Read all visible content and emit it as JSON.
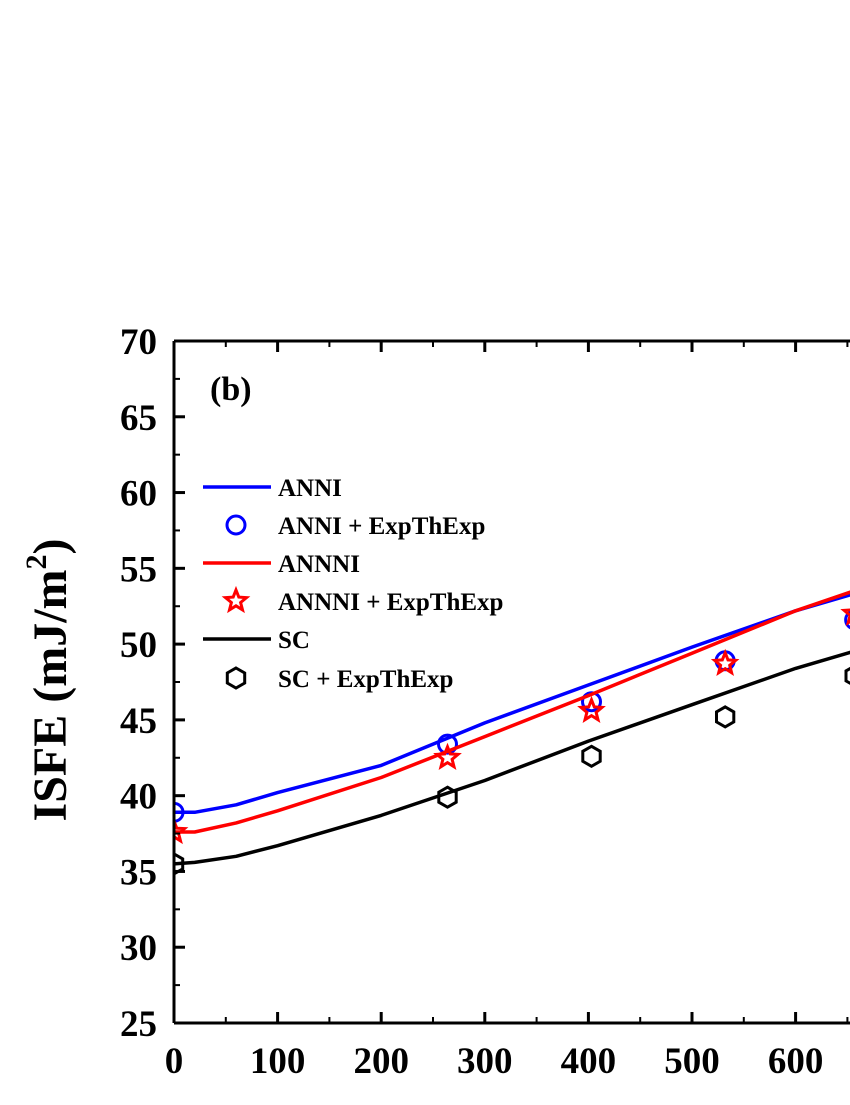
{
  "chart_data": {
    "type": "line",
    "panel_label": "(b)",
    "ylabel": "ISFE (mJ/m",
    "ylabel_sup": "2",
    "ylabel_close": ")",
    "xlabel": "",
    "xlim": [
      0,
      660
    ],
    "ylim": [
      25,
      70
    ],
    "x_ticks": [
      0,
      100,
      200,
      300,
      400,
      500,
      600
    ],
    "y_ticks": [
      25,
      30,
      35,
      40,
      45,
      50,
      55,
      60,
      65,
      70
    ],
    "x_tick_labels": [
      "0",
      "100",
      "200",
      "300",
      "400",
      "500",
      "600"
    ],
    "y_tick_labels": [
      "25",
      "30",
      "35",
      "40",
      "45",
      "50",
      "55",
      "60",
      "65",
      "70"
    ],
    "legend_position": "left",
    "series": [
      {
        "name": "ANNI",
        "kind": "line",
        "color": "#0000ff",
        "x": [
          0,
          20,
          60,
          100,
          200,
          300,
          400,
          500,
          600,
          660
        ],
        "y": [
          38.9,
          38.9,
          39.4,
          40.2,
          42.0,
          44.8,
          47.3,
          49.8,
          52.2,
          53.4
        ]
      },
      {
        "name": "ANNI + ExpThExp",
        "kind": "scatter",
        "marker": "circle",
        "color": "#0000ff",
        "x": [
          0,
          264,
          403,
          532,
          657
        ],
        "y": [
          38.9,
          43.4,
          46.2,
          48.9,
          51.6
        ]
      },
      {
        "name": "ANNNI",
        "kind": "line",
        "color": "#ff0000",
        "x": [
          0,
          20,
          60,
          100,
          200,
          300,
          400,
          500,
          600,
          660
        ],
        "y": [
          37.6,
          37.6,
          38.2,
          39.0,
          41.2,
          43.9,
          46.6,
          49.4,
          52.2,
          53.6
        ]
      },
      {
        "name": "ANNNI + ExpThExp",
        "kind": "scatter",
        "marker": "star",
        "color": "#ff0000",
        "x": [
          0,
          264,
          403,
          532,
          657
        ],
        "y": [
          37.6,
          42.5,
          45.6,
          48.7,
          52.0
        ]
      },
      {
        "name": "SC",
        "kind": "line",
        "color": "#000000",
        "x": [
          0,
          20,
          60,
          100,
          200,
          300,
          400,
          500,
          600,
          660
        ],
        "y": [
          35.5,
          35.6,
          36.0,
          36.7,
          38.7,
          41.0,
          43.6,
          46.0,
          48.4,
          49.6
        ]
      },
      {
        "name": "SC + ExpThExp",
        "kind": "scatter",
        "marker": "hexagon",
        "color": "#000000",
        "x": [
          0,
          264,
          403,
          532,
          657
        ],
        "y": [
          35.5,
          39.9,
          42.6,
          45.2,
          47.9
        ]
      }
    ]
  }
}
